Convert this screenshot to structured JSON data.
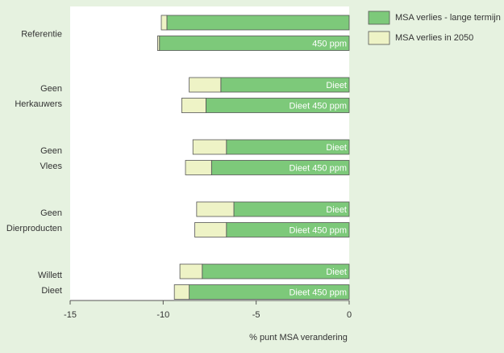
{
  "chart_data": {
    "type": "stacked-barh",
    "xlabel": "% punt MSA verandering",
    "groups": [
      {
        "lines": [
          "Referentie"
        ]
      },
      {
        "lines": [
          "Geen",
          "Herkauwers"
        ]
      },
      {
        "lines": [
          "Geen",
          "Vlees"
        ]
      },
      {
        "lines": [
          "Geen",
          "Dierproducten"
        ]
      },
      {
        "lines": [
          "Willett",
          "Dieet"
        ]
      }
    ],
    "bar_labels": [
      null,
      "450 ppm",
      "Dieet",
      "Dieet 450 ppm",
      "Dieet",
      "Dieet 450 ppm",
      "Dieet",
      "Dieet 450 ppm",
      "Dieet",
      "Dieet 450 ppm"
    ],
    "series": [
      {
        "name": "MSA verlies - lange termijn",
        "color": "#7dc97a",
        "values": [
          -9.8,
          -10.2,
          -6.9,
          -7.7,
          -6.6,
          -7.4,
          -6.2,
          -6.6,
          -7.9,
          -8.6
        ]
      },
      {
        "name": "MSA verlies in 2050",
        "color": "#eef3c6",
        "values": [
          -0.3,
          -0.1,
          -1.7,
          -1.3,
          -1.8,
          -1.4,
          -2.0,
          -1.7,
          -1.2,
          -0.8
        ]
      }
    ],
    "xlim": [
      -15,
      0
    ],
    "xticks": [
      -15,
      -10,
      -5,
      0
    ],
    "legend": "upper right"
  }
}
